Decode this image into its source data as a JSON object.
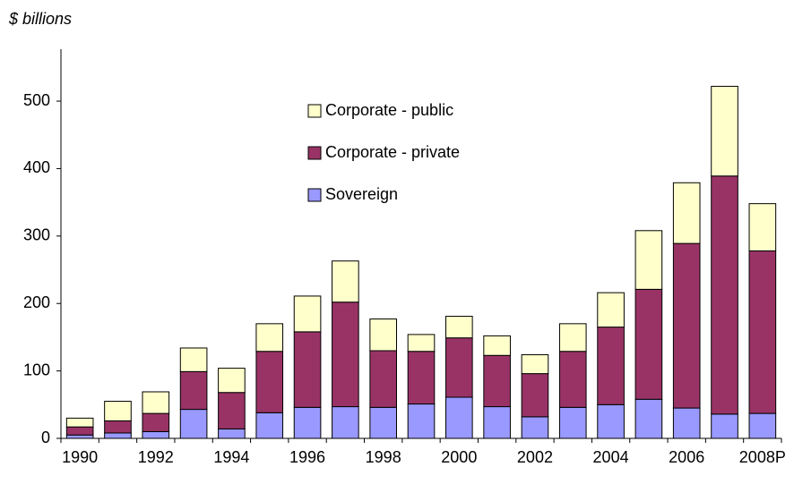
{
  "chart_data": {
    "type": "stacked-bar",
    "y_label": "$ billions",
    "categories": [
      "1990",
      null,
      "1992",
      null,
      "1994",
      null,
      "1996",
      null,
      "1998",
      null,
      "2000",
      null,
      "2002",
      null,
      "2004",
      null,
      "2006",
      null,
      "2008P"
    ],
    "series": [
      {
        "name": "Sovereign",
        "color": "#9999ff",
        "values": [
          5,
          8,
          10,
          43,
          14,
          38,
          46,
          47,
          46,
          51,
          61,
          47,
          32,
          46,
          50,
          58,
          45,
          36,
          37
        ]
      },
      {
        "name": "Corporate - private",
        "color": "#993366",
        "values": [
          12,
          18,
          27,
          56,
          54,
          91,
          112,
          155,
          84,
          78,
          88,
          76,
          64,
          83,
          115,
          163,
          244,
          353,
          241
        ]
      },
      {
        "name": "Corporate - public",
        "color": "#ffffcc",
        "values": [
          13,
          29,
          32,
          35,
          36,
          41,
          53,
          61,
          47,
          25,
          32,
          29,
          28,
          41,
          51,
          87,
          90,
          133,
          70
        ]
      }
    ],
    "ylim": [
      0,
      577
    ],
    "yticks": [
      0,
      100,
      200,
      300,
      400,
      500
    ],
    "grid": false
  }
}
